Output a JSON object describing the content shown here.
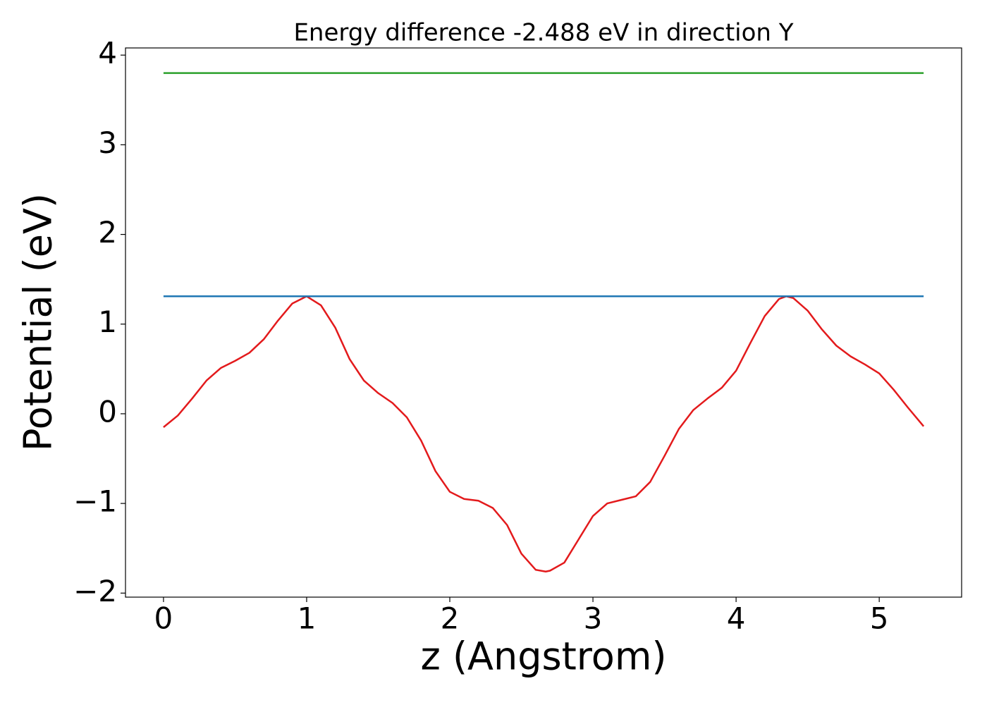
{
  "chart_data": {
    "type": "line",
    "title": "Energy difference -2.488 eV in direction Y",
    "x_label": "z (Angstrom)",
    "y_label": "Potential (eV)",
    "xlim": [
      -0.2655,
      5.5755
    ],
    "ylim": [
      -2.045,
      4.08
    ],
    "xticks": [
      0,
      1,
      2,
      3,
      4,
      5
    ],
    "yticks": [
      {
        "value": -2,
        "label": "−2"
      },
      {
        "value": -1,
        "label": "−1"
      },
      0,
      1,
      2,
      3,
      4
    ],
    "series": [
      {
        "color": "#e31a1c",
        "x": [
          0,
          0.1,
          0.2,
          0.3,
          0.4,
          0.5,
          0.6,
          0.7,
          0.8,
          0.9,
          1.0,
          1.1,
          1.2,
          1.3,
          1.4,
          1.5,
          1.6,
          1.7,
          1.8,
          1.9,
          2.0,
          2.1,
          2.2,
          2.3,
          2.4,
          2.5,
          2.6,
          2.67,
          2.7,
          2.8,
          2.9,
          3.0,
          3.1,
          3.2,
          3.3,
          3.4,
          3.5,
          3.6,
          3.7,
          3.8,
          3.9,
          4.0,
          4.1,
          4.2,
          4.3,
          4.35,
          4.4,
          4.5,
          4.6,
          4.7,
          4.8,
          4.9,
          5.0,
          5.1,
          5.2,
          5.31
        ],
        "values": [
          -0.15,
          -0.02,
          0.17,
          0.37,
          0.51,
          0.59,
          0.68,
          0.83,
          1.04,
          1.23,
          1.31,
          1.21,
          0.96,
          0.61,
          0.37,
          0.23,
          0.12,
          -0.04,
          -0.3,
          -0.64,
          -0.87,
          -0.95,
          -0.97,
          -1.05,
          -1.24,
          -1.56,
          -1.74,
          -1.76,
          -1.75,
          -1.66,
          -1.4,
          -1.14,
          -1.0,
          -0.96,
          -0.92,
          -0.76,
          -0.47,
          -0.17,
          0.04,
          0.17,
          0.29,
          0.48,
          0.79,
          1.09,
          1.28,
          1.31,
          1.29,
          1.15,
          0.94,
          0.76,
          0.64,
          0.55,
          0.45,
          0.27,
          0.07,
          -0.14
        ]
      },
      {
        "color": "#1f77b4",
        "x": [
          0,
          5.31
        ],
        "values": [
          1.31,
          1.31
        ]
      },
      {
        "color": "#2ca02c",
        "x": [
          0,
          5.31
        ],
        "values": [
          3.8,
          3.8
        ]
      }
    ]
  }
}
